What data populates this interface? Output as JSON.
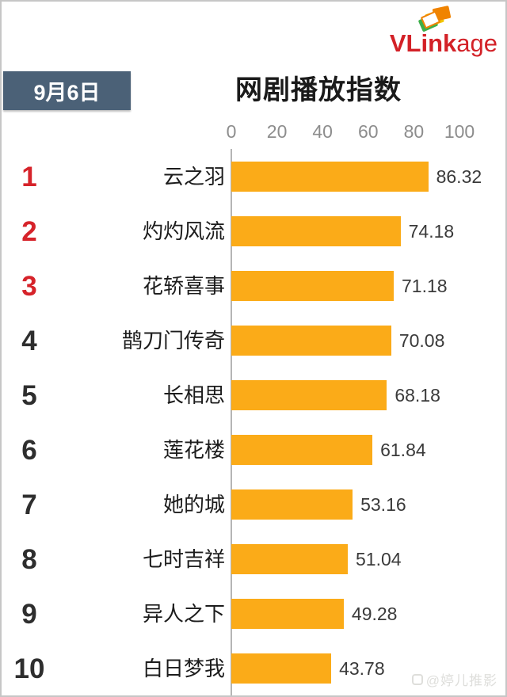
{
  "logo": {
    "text_bold": "VLink",
    "text_light": "age",
    "color": "#d32127",
    "stack_colors": [
      "#3caf4a",
      "#f2c500",
      "#f08300"
    ]
  },
  "header": {
    "date": "9月6日",
    "date_bg": "#4b6177",
    "title": "网剧播放指数"
  },
  "watermark": {
    "text": "@婷儿推影"
  },
  "chart_data": {
    "type": "bar",
    "orientation": "horizontal",
    "title": "网剧播放指数",
    "date": "9月6日",
    "categories": [
      "云之羽",
      "灼灼风流",
      "花轿喜事",
      "鹊刀门传奇",
      "长相思",
      "莲花楼",
      "她的城",
      "七时吉祥",
      "异人之下",
      "白日梦我"
    ],
    "values": [
      86.32,
      74.18,
      71.18,
      70.08,
      68.18,
      61.84,
      53.16,
      51.04,
      49.28,
      43.78
    ],
    "ranks": [
      1,
      2,
      3,
      4,
      5,
      6,
      7,
      8,
      9,
      10
    ],
    "rank_color_top3": "#d6232a",
    "rank_color_rest": "#2e2e2e",
    "bar_color": "#fbab18",
    "value_label_color": "#3a3a3a",
    "tick_label_color": "#8d8d8d",
    "xlim": [
      0,
      100
    ],
    "x_ticks": [
      0,
      20,
      40,
      60,
      80,
      100
    ],
    "grid": "off",
    "legend": "none"
  }
}
